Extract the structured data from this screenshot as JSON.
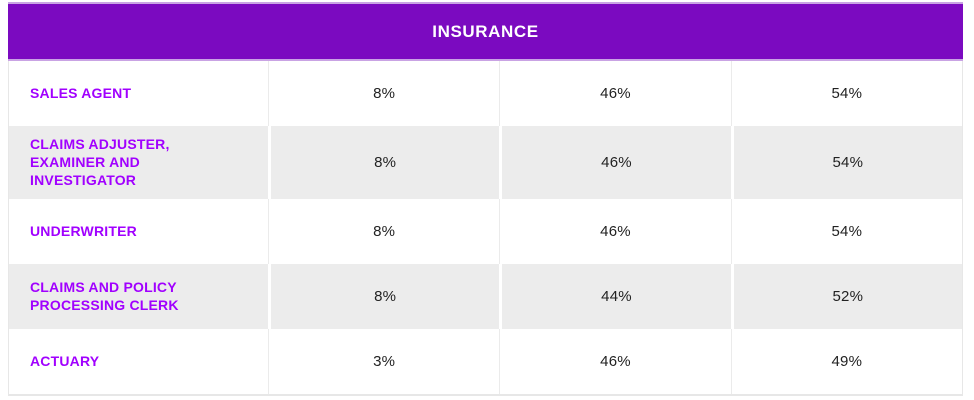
{
  "chart_data": {
    "type": "table",
    "title": "INSURANCE",
    "rows": [
      {
        "label": "SALES AGENT",
        "values": [
          "8%",
          "46%",
          "54%"
        ]
      },
      {
        "label": "CLAIMS ADJUSTER, EXAMINER AND INVESTIGATOR",
        "values": [
          "8%",
          "46%",
          "54%"
        ]
      },
      {
        "label": "UNDERWRITER",
        "values": [
          "8%",
          "46%",
          "54%"
        ]
      },
      {
        "label": "CLAIMS AND POLICY PROCESSING CLERK",
        "values": [
          "8%",
          "44%",
          "52%"
        ]
      },
      {
        "label": "ACTUARY",
        "values": [
          "3%",
          "46%",
          "49%"
        ]
      }
    ],
    "layout": {
      "value_columns": 3,
      "column_headers_visible": false,
      "alternating_row_shading": true,
      "header_position": "top-center"
    }
  },
  "colors": {
    "header_bg": "#7b0ac0",
    "header_border": "#c9a3e4",
    "header_text": "#ffffff",
    "row_label_text": "#a100ff",
    "alt_row_bg": "#ececec",
    "value_text": "#222222",
    "table_border": "#e7e7e7"
  }
}
